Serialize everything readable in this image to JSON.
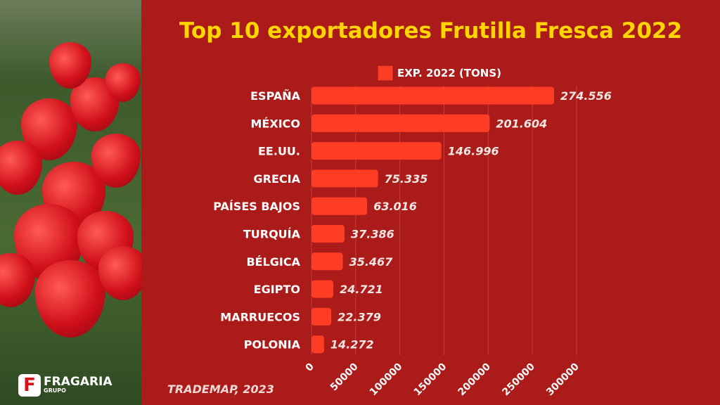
{
  "chart_data": {
    "type": "bar",
    "orientation": "horizontal",
    "title": "Top 10 exportadores Frutilla Fresca 2022",
    "legend": "EXP. 2022 (TONS)",
    "categories": [
      "ESPAÑA",
      "MÉXICO",
      "EE.UU.",
      "GRECIA",
      "PAÍSES BAJOS",
      "TURQUÍA",
      "BÉLGICA",
      "EGIPTO",
      "MARRUECOS",
      "POLONIA"
    ],
    "values": [
      274556,
      201604,
      146996,
      75335,
      63016,
      37386,
      35467,
      24721,
      22379,
      14272
    ],
    "value_labels": [
      "274.556",
      "201.604",
      "146.996",
      "75.335",
      "63.016",
      "37.386",
      "35.467",
      "24.721",
      "22.379",
      "14.272"
    ],
    "xlim": [
      0,
      300000
    ],
    "ticks": [
      "0",
      "50000",
      "100000",
      "150000",
      "200000",
      "250000",
      "300000"
    ],
    "tick_values": [
      0,
      50000,
      100000,
      150000,
      200000,
      250000,
      300000
    ],
    "grid": true,
    "legend_position": "top"
  },
  "source": "TRADEMAP, 2023",
  "logo": {
    "letter": "F",
    "name": "FRAGARIA",
    "sub": "GRUPO"
  },
  "colors": {
    "bar": "#ff3d24",
    "background": "#ab1b1a",
    "title": "#ffd500"
  }
}
